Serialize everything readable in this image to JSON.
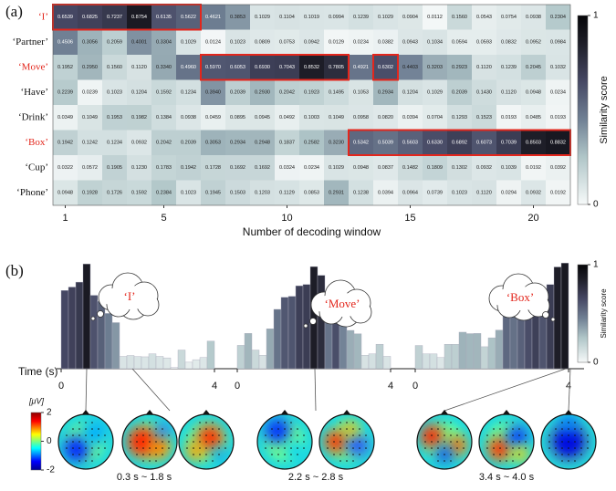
{
  "chart_data": [
    {
      "type": "heatmap",
      "panel": "(a)",
      "xlabel": "Number of decoding window",
      "xlim": [
        0.5,
        21.5
      ],
      "xticks": [
        1,
        5,
        10,
        15,
        20
      ],
      "colorbar": {
        "label": "Similarity score",
        "lim": [
          0,
          1
        ],
        "ticks": [
          0,
          1
        ]
      },
      "series": [
        {
          "name": "‘I’",
          "color": "#e3261c",
          "values": [
            0.6539,
            0.6825,
            0.7237,
            0.8754,
            0.6135,
            0.5622,
            0.4621,
            0.3853,
            0.1029,
            0.1104,
            0.1019,
            0.0994,
            0.1239,
            0.1029,
            0.0904,
            0.0112,
            0.156,
            0.0543,
            0.0754,
            0.0938,
            0.2304
          ],
          "value_labels": [
            "0.6539",
            "0.6825",
            "0.7237",
            "0.8754",
            "0.6135",
            "0.5622",
            "0.4621",
            "0.3853",
            "0.1029",
            "0.1104",
            "0.1019",
            "0.0994",
            "0.1239",
            "0.1029",
            "0.0904",
            "0.0112",
            "0.1560",
            "0.0543",
            "0.0754",
            "0.0938",
            "0.2304"
          ]
        },
        {
          "name": "‘Partner’",
          "color": "#111111",
          "values": [
            0.4506,
            0.3056,
            0.2059,
            0.4001,
            0.3304,
            0.1029,
            0.0124,
            0.1023,
            0.0809,
            0.0753,
            0.0942,
            0.0129,
            0.0234,
            0.0382,
            0.0943,
            0.1034,
            0.0594,
            0.0593,
            0.0832,
            0.0952,
            0.0984
          ],
          "value_labels": [
            "0.4506",
            "0.3056",
            "0.2059",
            "0.4001",
            "0.3304",
            "0.1029",
            "0.0124",
            "0.1023",
            "0.0809",
            "0.0753",
            "0.0942",
            "0.0129",
            "0.0234",
            "0.0382",
            "0.0943",
            "0.1034",
            "0.0594",
            "0.0593",
            "0.0832",
            "0.0952",
            "0.0984"
          ]
        },
        {
          "name": "‘Move’",
          "color": "#e3261c",
          "values": [
            0.1952,
            0.295,
            0.156,
            0.112,
            0.334,
            0.496,
            0.597,
            0.6053,
            0.693,
            0.7043,
            0.8532,
            0.7805,
            0.4921,
            0.6302,
            0.4403,
            0.3203,
            0.2923,
            0.112,
            0.1239,
            0.2045,
            0.1032
          ],
          "value_labels": [
            "0.1952",
            "0.2950",
            "0.1560",
            "0.1120",
            "0.3340",
            "0.4960",
            "0.5970",
            "0.6053",
            "0.6930",
            "0.7043",
            "0.8532",
            "0.7805",
            "0.4921",
            "0.6302",
            "0.4403",
            "0.3203",
            "0.2923",
            "0.1120",
            "0.1239",
            "0.2045",
            "0.1032"
          ]
        },
        {
          "name": "‘Have’",
          "color": "#111111",
          "values": [
            0.2239,
            0.0239,
            0.1023,
            0.1204,
            0.1592,
            0.1234,
            0.394,
            0.2039,
            0.293,
            0.2042,
            0.1923,
            0.1495,
            0.1053,
            0.2934,
            0.1204,
            0.1029,
            0.2039,
            0.143,
            0.112,
            0.0948,
            0.0234
          ],
          "value_labels": [
            "0.2239",
            "0.0239",
            "0.1023",
            "0.1204",
            "0.1592",
            "0.1234",
            "0.3940",
            "0.2039",
            "0.2930",
            "0.2042",
            "0.1923",
            "0.1495",
            "0.1053",
            "0.2934",
            "0.1204",
            "0.1029",
            "0.2039",
            "0.1430",
            "0.1120",
            "0.0948",
            "0.0234"
          ]
        },
        {
          "name": "‘Drink’",
          "color": "#111111",
          "values": [
            0.0349,
            0.1049,
            0.1953,
            0.1982,
            0.1384,
            0.0938,
            0.0459,
            0.0895,
            0.0945,
            0.0492,
            0.1003,
            0.1049,
            0.0958,
            0.082,
            0.0394,
            0.0704,
            0.1293,
            0.1523,
            0.0193,
            0.0485,
            0.0193
          ],
          "value_labels": [
            "0.0349",
            "0.1049",
            "0.1953",
            "0.1982",
            "0.1384",
            "0.0938",
            "0.0459",
            "0.0895",
            "0.0945",
            "0.0492",
            "0.1003",
            "0.1049",
            "0.0958",
            "0.0820",
            "0.0394",
            "0.0704",
            "0.1293",
            "0.1523",
            "0.0193",
            "0.0485",
            "0.0193"
          ]
        },
        {
          "name": "‘Box’",
          "color": "#e3261c",
          "values": [
            0.1942,
            0.1242,
            0.1234,
            0.0932,
            0.2042,
            0.2039,
            0.3053,
            0.2934,
            0.2948,
            0.1837,
            0.2582,
            0.323,
            0.5342,
            0.5039,
            0.5603,
            0.633,
            0.6892,
            0.6073,
            0.7039,
            0.8503,
            0.8832
          ],
          "value_labels": [
            "0.1942",
            "0.1242",
            "0.1234",
            "0.0932",
            "0.2042",
            "0.2039",
            "0.3053",
            "0.2934",
            "0.2948",
            "0.1837",
            "0.2582",
            "0.3230",
            "0.5342",
            "0.5039",
            "0.5603",
            "0.6330",
            "0.6892",
            "0.6073",
            "0.7039",
            "0.8503",
            "0.8832"
          ]
        },
        {
          "name": "‘Cup’",
          "color": "#111111",
          "values": [
            0.0322,
            0.0572,
            0.1905,
            0.123,
            0.1783,
            0.1942,
            0.1728,
            0.1692,
            0.1692,
            0.0324,
            0.0234,
            0.1029,
            0.0948,
            0.0837,
            0.1482,
            0.1809,
            0.1302,
            0.0932,
            0.1039,
            0.0192,
            0.0392
          ],
          "value_labels": [
            "0.0322",
            "0.0572",
            "0.1905",
            "0.1230",
            "0.1783",
            "0.1942",
            "0.1728",
            "0.1692",
            "0.1692",
            "0.0324",
            "0.0234",
            "0.1029",
            "0.0948",
            "0.0837",
            "0.1482",
            "0.1809",
            "0.1302",
            "0.0932",
            "0.1039",
            "0.0192",
            "0.0392"
          ]
        },
        {
          "name": "‘Phone’",
          "color": "#111111",
          "values": [
            0.0948,
            0.1928,
            0.1726,
            0.1592,
            0.2384,
            0.1023,
            0.1945,
            0.1503,
            0.1203,
            0.1129,
            0.0853,
            0.2931,
            0.1238,
            0.0394,
            0.0964,
            0.0739,
            0.1023,
            0.112,
            0.0294,
            0.0932,
            0.0192
          ],
          "value_labels": [
            "0.0948",
            "0.1928",
            "0.1726",
            "0.1592",
            "0.2384",
            "0.1023",
            "0.1945",
            "0.1503",
            "0.1203",
            "0.1129",
            "0.0853",
            "0.2931",
            "0.1238",
            "0.0394",
            "0.0964",
            "0.0739",
            "0.1023",
            "0.1120",
            "0.0294",
            "0.0932",
            "0.0192"
          ]
        }
      ]
    },
    {
      "type": "bar",
      "panel": "(b)",
      "xlabel": "Time (s)",
      "xlim": [
        0,
        4
      ],
      "xticks": [
        0,
        4
      ],
      "ylim": [
        0,
        0.9
      ],
      "colorbar": {
        "label": "Similarity score",
        "lim": [
          0,
          1
        ],
        "ticks": [
          0,
          1
        ]
      }
    },
    {
      "type": "topomap",
      "colorbar": {
        "label": "[μV]",
        "lim": [
          -2,
          2
        ],
        "ticks": [
          2,
          0,
          -2
        ]
      },
      "windows": [
        "0.3 s ~ 1.8 s",
        "2.2 s ~ 2.8 s",
        "3.4 s ~ 4.0 s"
      ]
    }
  ]
}
